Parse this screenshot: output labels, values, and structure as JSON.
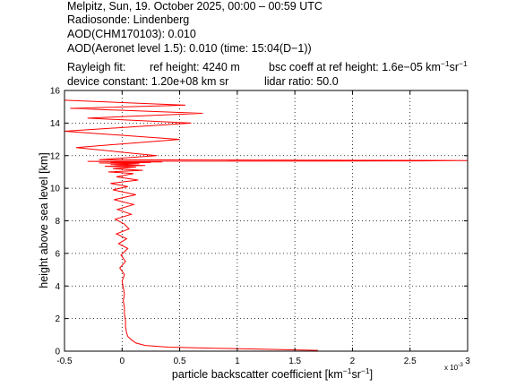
{
  "header": {
    "line1": "Melpitz, Sun, 19. October 2025, 00:00 – 00:59 UTC",
    "line2": "Radiosonde: Lindenberg",
    "line3": "AOD(CHM170103): 0.010",
    "line4": "AOD(Aeronet level 1.5): 0.010   (time: 15:04(D−1))",
    "rayleigh_label": "Rayleigh fit:",
    "ref_height": "ref height: 4240 m",
    "bsc_coeff_prefix": "bsc coeff at ref height: 1.6e−05 km",
    "bsc_coeff_sup1": "−1",
    "bsc_coeff_sr": "sr",
    "bsc_coeff_sup2": "−1",
    "device_constant": "device constant: 1.20e+08 km sr",
    "lidar_ratio": "lidar ratio: 50.0"
  },
  "colors": {
    "profile": "#ff0000",
    "axes": "#000000",
    "grid": "#000000"
  },
  "chart_data": {
    "type": "line",
    "title": "",
    "xlabel_prefix": "particle backscatter coefficient [km",
    "xlabel_sup1": "−1",
    "xlabel_sr": "sr",
    "xlabel_sup2": "−1",
    "xlabel_suffix": "]",
    "ylabel": "height above sea level [km]",
    "x_exponent_label": "x 10",
    "x_exponent_power": "-3",
    "xlim": [
      -0.5,
      3.0
    ],
    "ylim": [
      0,
      16
    ],
    "xticks": [
      -0.5,
      0,
      0.5,
      1,
      1.5,
      2,
      2.5,
      3
    ],
    "xtick_labels": [
      "-0.5",
      "0",
      "0.5",
      "1",
      "1.5",
      "2",
      "2.5",
      "3"
    ],
    "yticks": [
      0,
      2,
      4,
      6,
      8,
      10,
      12,
      14,
      16
    ],
    "ytick_labels": [
      "0",
      "2",
      "4",
      "6",
      "8",
      "10",
      "12",
      "14",
      "16"
    ],
    "grid": "dotted",
    "series": [
      {
        "x": [
          1.7,
          1.2,
          0.8,
          0.4,
          0.2,
          0.12,
          0.08,
          0.05,
          0.04,
          0.03,
          0.03,
          0.02,
          0.02,
          0.01,
          0.02,
          0.01,
          0.0,
          0.02,
          -0.02,
          0.03,
          -0.01,
          0.05,
          -0.03,
          0.04,
          -0.05,
          0.06,
          0.02,
          -0.06,
          0.08,
          -0.04,
          0.1,
          -0.07,
          0.12,
          -0.08,
          0.05,
          -0.1,
          0.14,
          -0.05,
          0.1,
          -0.12,
          0.18,
          -0.08,
          0.12,
          -0.15,
          0.2,
          -0.1,
          0.15,
          -0.2,
          0.25,
          -0.1,
          0.35,
          -0.3,
          2.6,
          3.0,
          -0.2,
          0.3,
          -0.4,
          0.5,
          -0.5,
          0.6,
          -0.3,
          0.7,
          -0.45,
          0.55,
          -0.5
        ],
        "y": [
          0.05,
          0.12,
          0.18,
          0.25,
          0.35,
          0.5,
          0.7,
          0.9,
          1.1,
          1.5,
          1.9,
          2.3,
          2.7,
          3.1,
          3.5,
          3.9,
          4.3,
          4.7,
          5.1,
          5.5,
          5.9,
          6.3,
          6.6,
          6.9,
          7.2,
          7.5,
          7.8,
          8.1,
          8.4,
          8.7,
          9.0,
          9.3,
          9.6,
          9.9,
          10.1,
          10.3,
          10.5,
          10.7,
          10.9,
          11.0,
          11.1,
          11.2,
          11.3,
          11.35,
          11.4,
          11.45,
          11.5,
          11.55,
          11.58,
          11.6,
          11.62,
          11.65,
          11.68,
          11.7,
          11.75,
          12.0,
          12.5,
          13.0,
          13.5,
          14.0,
          14.3,
          14.6,
          14.9,
          15.1,
          15.4
        ]
      }
    ]
  }
}
